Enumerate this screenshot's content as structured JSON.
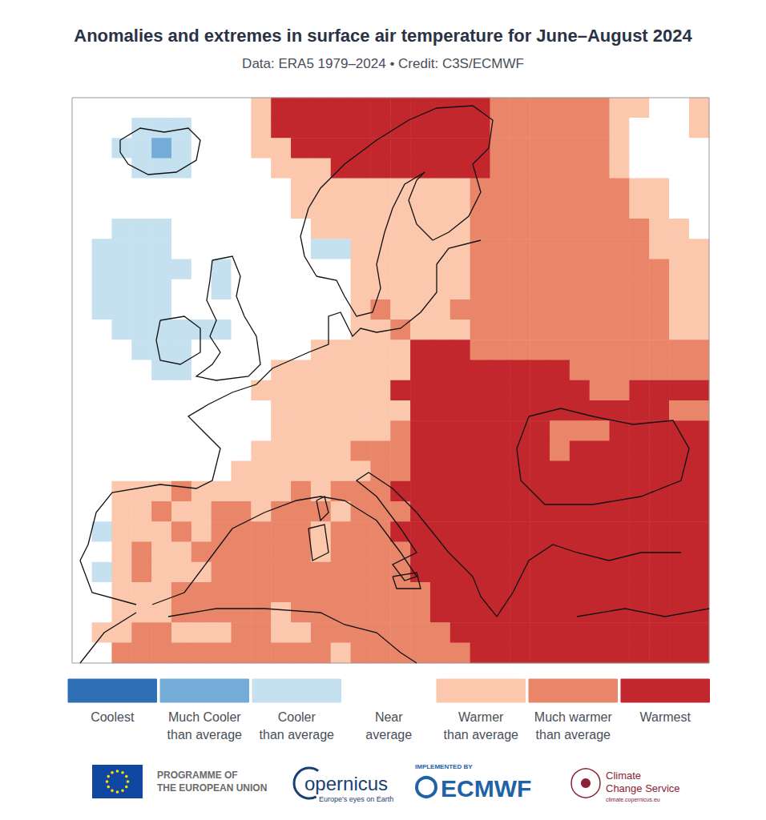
{
  "chart_data": {
    "type": "heatmap",
    "title": "Anomalies and extremes in surface air temperature for June–August 2024",
    "subtitle": "Data: ERA5 1979–2024 • Credit: C3S/ECMWF",
    "grid": false,
    "tick_labels": false,
    "color_bar": {
      "range": [
        -3,
        3
      ],
      "classes": [
        {
          "value": -3,
          "label": "Coolest",
          "color": "#2e6fb6"
        },
        {
          "value": -2,
          "label": "Much Cooler than average",
          "color": "#72acd7"
        },
        {
          "value": -1,
          "label": "Cooler than average",
          "color": "#c5e0ef"
        },
        {
          "value": 0,
          "label": "Near average",
          "color": "#ffffff"
        },
        {
          "value": 1,
          "label": "Warmer than average",
          "color": "#fbc7ad"
        },
        {
          "value": 2,
          "label": "Much warmer than average",
          "color": "#e9866a"
        },
        {
          "value": 3,
          "label": "Warmest",
          "color": "#c2272e"
        }
      ]
    },
    "cells": [
      [
        0,
        0,
        0,
        0,
        0,
        0,
        0,
        0,
        0,
        1,
        3,
        3,
        3,
        3,
        3,
        3,
        3,
        3,
        3,
        3,
        3,
        2,
        2,
        2,
        2,
        2,
        2,
        1,
        1,
        0,
        0,
        1
      ],
      [
        0,
        0,
        0,
        -1,
        -1,
        -1,
        0,
        0,
        0,
        1,
        3,
        3,
        3,
        3,
        3,
        3,
        3,
        3,
        3,
        3,
        3,
        2,
        2,
        2,
        2,
        2,
        2,
        1,
        0,
        0,
        0,
        1
      ],
      [
        0,
        0,
        -1,
        -1,
        -2,
        -1,
        0,
        0,
        0,
        1,
        1,
        3,
        3,
        3,
        3,
        3,
        3,
        3,
        3,
        3,
        3,
        2,
        2,
        2,
        2,
        2,
        2,
        1,
        0,
        0,
        0,
        0
      ],
      [
        0,
        0,
        0,
        -1,
        -1,
        -1,
        0,
        0,
        0,
        0,
        1,
        1,
        1,
        3,
        3,
        3,
        3,
        3,
        3,
        3,
        3,
        2,
        2,
        2,
        2,
        2,
        2,
        1,
        0,
        0,
        0,
        0
      ],
      [
        0,
        0,
        0,
        0,
        0,
        0,
        0,
        0,
        0,
        0,
        0,
        1,
        1,
        1,
        1,
        1,
        1,
        1,
        1,
        1,
        2,
        2,
        2,
        2,
        2,
        2,
        2,
        2,
        1,
        1,
        0,
        0
      ],
      [
        0,
        0,
        0,
        0,
        0,
        0,
        0,
        0,
        0,
        0,
        0,
        1,
        1,
        1,
        1,
        1,
        1,
        1,
        1,
        1,
        2,
        2,
        2,
        2,
        2,
        2,
        2,
        2,
        1,
        1,
        0,
        0
      ],
      [
        0,
        0,
        -1,
        -1,
        -1,
        0,
        0,
        0,
        0,
        0,
        0,
        0,
        1,
        1,
        1,
        1,
        1,
        1,
        1,
        1,
        2,
        2,
        2,
        2,
        2,
        2,
        2,
        2,
        2,
        1,
        1,
        0
      ],
      [
        0,
        -1,
        -1,
        -1,
        -1,
        0,
        0,
        0,
        0,
        0,
        0,
        0,
        -1,
        -1,
        1,
        1,
        1,
        1,
        1,
        1,
        2,
        2,
        2,
        2,
        2,
        2,
        2,
        2,
        2,
        1,
        1,
        1
      ],
      [
        0,
        -1,
        -1,
        -1,
        -1,
        -1,
        0,
        -1,
        0,
        0,
        0,
        0,
        0,
        0,
        1,
        1,
        1,
        1,
        1,
        1,
        2,
        2,
        2,
        2,
        2,
        2,
        2,
        2,
        2,
        2,
        1,
        1
      ],
      [
        0,
        -1,
        -1,
        -1,
        -1,
        0,
        0,
        -1,
        0,
        0,
        0,
        0,
        0,
        0,
        1,
        1,
        1,
        1,
        1,
        1,
        2,
        2,
        2,
        2,
        2,
        2,
        2,
        2,
        2,
        2,
        1,
        1
      ],
      [
        0,
        -1,
        -1,
        -1,
        -1,
        0,
        0,
        0,
        0,
        0,
        0,
        0,
        0,
        0,
        1,
        2,
        1,
        1,
        1,
        2,
        2,
        2,
        2,
        2,
        2,
        2,
        2,
        2,
        2,
        2,
        1,
        1
      ],
      [
        0,
        0,
        -1,
        -1,
        -1,
        -1,
        -1,
        -1,
        0,
        0,
        0,
        0,
        0,
        0,
        1,
        1,
        2,
        1,
        1,
        1,
        2,
        2,
        2,
        2,
        2,
        2,
        2,
        2,
        2,
        2,
        1,
        1
      ],
      [
        0,
        0,
        0,
        -1,
        -1,
        -1,
        0,
        0,
        0,
        0,
        0,
        0,
        1,
        1,
        1,
        1,
        1,
        3,
        3,
        3,
        2,
        2,
        2,
        2,
        2,
        2,
        2,
        2,
        2,
        2,
        2,
        2
      ],
      [
        0,
        0,
        0,
        0,
        -1,
        -1,
        0,
        0,
        0,
        0,
        1,
        1,
        1,
        1,
        1,
        1,
        1,
        3,
        3,
        3,
        3,
        3,
        3,
        3,
        3,
        2,
        2,
        2,
        2,
        2,
        2,
        2
      ],
      [
        0,
        0,
        0,
        0,
        0,
        0,
        0,
        0,
        0,
        1,
        1,
        1,
        1,
        1,
        1,
        1,
        3,
        3,
        3,
        3,
        3,
        3,
        3,
        3,
        3,
        3,
        2,
        2,
        3,
        3,
        3,
        3
      ],
      [
        0,
        0,
        0,
        0,
        0,
        0,
        0,
        0,
        0,
        0,
        1,
        1,
        1,
        1,
        1,
        1,
        1,
        3,
        3,
        3,
        3,
        3,
        3,
        3,
        3,
        3,
        3,
        3,
        3,
        3,
        2,
        2
      ],
      [
        0,
        0,
        0,
        0,
        0,
        0,
        0,
        0,
        0,
        0,
        1,
        1,
        1,
        1,
        1,
        1,
        2,
        3,
        3,
        3,
        3,
        3,
        3,
        3,
        2,
        2,
        2,
        3,
        3,
        3,
        3,
        3
      ],
      [
        0,
        0,
        0,
        0,
        0,
        0,
        0,
        0,
        0,
        1,
        1,
        1,
        1,
        1,
        2,
        2,
        2,
        3,
        3,
        3,
        3,
        3,
        3,
        3,
        2,
        3,
        3,
        3,
        3,
        3,
        3,
        3
      ],
      [
        0,
        0,
        0,
        0,
        0,
        0,
        0,
        0,
        1,
        1,
        1,
        1,
        1,
        1,
        1,
        2,
        2,
        3,
        3,
        3,
        3,
        3,
        3,
        3,
        3,
        3,
        3,
        3,
        3,
        3,
        3,
        3
      ],
      [
        0,
        0,
        1,
        1,
        1,
        2,
        1,
        1,
        1,
        1,
        1,
        2,
        1,
        2,
        2,
        2,
        3,
        3,
        3,
        3,
        3,
        3,
        3,
        3,
        3,
        3,
        3,
        3,
        3,
        3,
        3,
        3
      ],
      [
        0,
        0,
        1,
        1,
        2,
        1,
        1,
        2,
        2,
        1,
        2,
        2,
        2,
        1,
        2,
        2,
        2,
        3,
        3,
        3,
        3,
        3,
        3,
        3,
        3,
        3,
        3,
        3,
        3,
        3,
        3,
        3
      ],
      [
        0,
        -1,
        1,
        1,
        1,
        2,
        1,
        2,
        2,
        2,
        2,
        2,
        1,
        2,
        2,
        2,
        3,
        3,
        3,
        3,
        3,
        3,
        3,
        3,
        3,
        3,
        3,
        3,
        3,
        3,
        3,
        3
      ],
      [
        0,
        0,
        1,
        2,
        1,
        1,
        2,
        2,
        2,
        2,
        2,
        2,
        1,
        2,
        2,
        2,
        2,
        3,
        3,
        3,
        3,
        3,
        3,
        3,
        3,
        3,
        3,
        3,
        3,
        3,
        3,
        3
      ],
      [
        0,
        -1,
        1,
        2,
        1,
        1,
        1,
        2,
        2,
        2,
        2,
        2,
        2,
        2,
        2,
        2,
        2,
        3,
        3,
        3,
        3,
        3,
        3,
        3,
        3,
        3,
        3,
        3,
        3,
        3,
        3,
        3
      ],
      [
        0,
        0,
        1,
        1,
        1,
        2,
        2,
        2,
        2,
        2,
        2,
        2,
        2,
        2,
        2,
        2,
        2,
        2,
        3,
        3,
        3,
        3,
        3,
        3,
        3,
        3,
        3,
        3,
        3,
        3,
        3,
        3
      ],
      [
        0,
        0,
        1,
        1,
        1,
        2,
        2,
        2,
        2,
        2,
        1,
        2,
        2,
        2,
        2,
        2,
        2,
        2,
        3,
        3,
        3,
        3,
        3,
        3,
        3,
        3,
        3,
        3,
        3,
        3,
        3,
        3
      ],
      [
        0,
        1,
        1,
        2,
        2,
        1,
        1,
        1,
        2,
        2,
        1,
        1,
        2,
        2,
        2,
        2,
        2,
        2,
        2,
        3,
        3,
        3,
        3,
        3,
        3,
        3,
        3,
        3,
        3,
        3,
        3,
        3
      ],
      [
        0,
        0,
        2,
        2,
        2,
        2,
        2,
        2,
        2,
        2,
        2,
        2,
        2,
        1,
        2,
        2,
        2,
        2,
        2,
        2,
        3,
        3,
        3,
        3,
        3,
        3,
        3,
        3,
        3,
        3,
        3,
        3
      ]
    ]
  },
  "footer": {
    "eu": "PROGRAMME OF THE EUROPEAN UNION",
    "copernicus": "opernicus",
    "copernicus_tagline": "Europe's eyes on Earth",
    "implemented_by": "IMPLEMENTED BY",
    "ecmwf": "ECMWF",
    "c3s": "Climate Change Service",
    "c3s_url": "climate.copernicus.eu"
  }
}
